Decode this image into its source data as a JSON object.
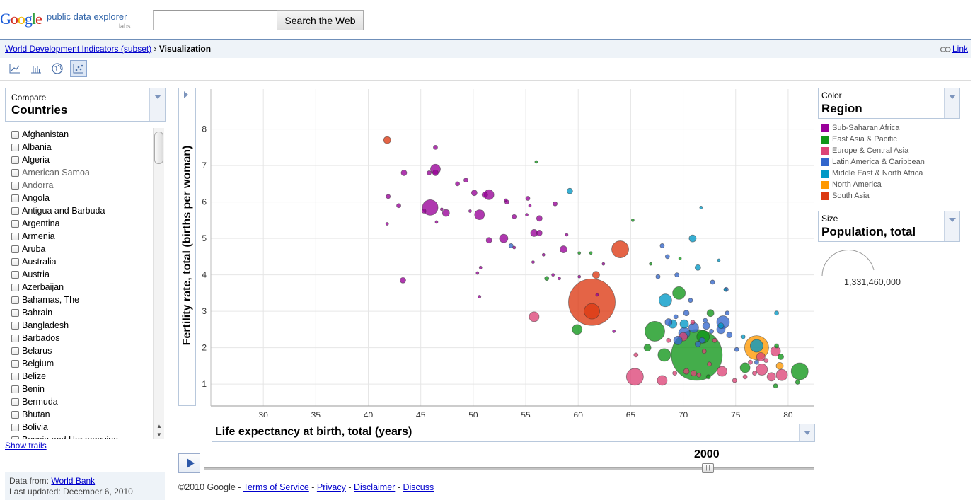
{
  "header": {
    "logo_google": "Google",
    "logo_product": "public data explorer",
    "logo_labs": "labs",
    "search_value": "",
    "search_button": "Search the Web"
  },
  "breadcrumb": {
    "dataset": "World Development Indicators (subset)",
    "separator": "›",
    "current": "Visualization"
  },
  "link_label": "Link",
  "view_icons": [
    "line-chart-icon",
    "bar-chart-icon",
    "map-icon",
    "bubble-chart-icon"
  ],
  "compare": {
    "small_label": "Compare",
    "big_label": "Countries"
  },
  "countries": [
    {
      "name": "Afghanistan"
    },
    {
      "name": "Albania"
    },
    {
      "name": "Algeria"
    },
    {
      "name": "American Samoa",
      "grey": true
    },
    {
      "name": "Andorra",
      "grey": true
    },
    {
      "name": "Angola"
    },
    {
      "name": "Antigua and Barbuda"
    },
    {
      "name": "Argentina"
    },
    {
      "name": "Armenia"
    },
    {
      "name": "Aruba"
    },
    {
      "name": "Australia"
    },
    {
      "name": "Austria"
    },
    {
      "name": "Azerbaijan"
    },
    {
      "name": "Bahamas, The"
    },
    {
      "name": "Bahrain"
    },
    {
      "name": "Bangladesh"
    },
    {
      "name": "Barbados"
    },
    {
      "name": "Belarus"
    },
    {
      "name": "Belgium"
    },
    {
      "name": "Belize"
    },
    {
      "name": "Benin"
    },
    {
      "name": "Bermuda"
    },
    {
      "name": "Bhutan"
    },
    {
      "name": "Bolivia"
    },
    {
      "name": "Bosnia and Herzegovina"
    }
  ],
  "show_trails": "Show trails",
  "data_source": {
    "prefix": "Data from:",
    "source": "World Bank",
    "updated": "Last updated: December 6, 2010"
  },
  "color_selector": {
    "small_label": "Color",
    "big_label": "Region"
  },
  "size_selector": {
    "small_label": "Size",
    "big_label": "Population, total",
    "sample_value": "1,331,460,000"
  },
  "legend": [
    {
      "name": "Sub-Saharan Africa",
      "color": "#990099"
    },
    {
      "name": "East Asia & Pacific",
      "color": "#109618"
    },
    {
      "name": "Europe & Central Asia",
      "color": "#dd4477"
    },
    {
      "name": "Latin America & Caribbean",
      "color": "#3366cc"
    },
    {
      "name": "Middle East & North Africa",
      "color": "#0099c6"
    },
    {
      "name": "North America",
      "color": "#ff9900"
    },
    {
      "name": "South Asia",
      "color": "#dc3912"
    }
  ],
  "timeline": {
    "year": "2000"
  },
  "footer": {
    "copyright": "©2010 Google -",
    "links": [
      "Terms of Service",
      "Privacy",
      "Disclaimer",
      "Discuss"
    ]
  },
  "chart_data": {
    "type": "scatter",
    "xlabel": "Life expectancy at birth, total (years)",
    "ylabel": "Fertility rate, total (births per woman)",
    "xlim": [
      25,
      82.5
    ],
    "ylim": [
      0.4,
      9.1
    ],
    "x_ticks": [
      30,
      35,
      40,
      45,
      50,
      55,
      60,
      65,
      70,
      75,
      80
    ],
    "y_ticks": [
      1,
      2,
      3,
      4,
      5,
      6,
      7,
      8
    ],
    "grid": true,
    "size_encoding": "Population, total",
    "color_encoding": "Region",
    "points": [
      {
        "x": 71.3,
        "y": 1.8,
        "r": 36,
        "region": "East Asia & Pacific"
      },
      {
        "x": 61.3,
        "y": 3.25,
        "r": 33,
        "region": "South Asia"
      },
      {
        "x": 61.3,
        "y": 3.0,
        "r": 11,
        "region": "South Asia"
      },
      {
        "x": 64.0,
        "y": 4.7,
        "r": 12,
        "region": "South Asia"
      },
      {
        "x": 41.8,
        "y": 7.7,
        "r": 5,
        "region": "South Asia"
      },
      {
        "x": 61.7,
        "y": 4.0,
        "r": 5,
        "region": "South Asia"
      },
      {
        "x": 77.0,
        "y": 2.0,
        "r": 17,
        "region": "North America"
      },
      {
        "x": 79.2,
        "y": 1.5,
        "r": 5,
        "region": "North America"
      },
      {
        "x": 67.3,
        "y": 2.45,
        "r": 14,
        "region": "East Asia & Pacific"
      },
      {
        "x": 81.1,
        "y": 1.35,
        "r": 12,
        "region": "East Asia & Pacific"
      },
      {
        "x": 69.6,
        "y": 3.5,
        "r": 9,
        "region": "East Asia & Pacific"
      },
      {
        "x": 59.9,
        "y": 2.5,
        "r": 7,
        "region": "East Asia & Pacific"
      },
      {
        "x": 68.2,
        "y": 1.8,
        "r": 9,
        "region": "East Asia & Pacific"
      },
      {
        "x": 71.9,
        "y": 2.3,
        "r": 9,
        "region": "East Asia & Pacific"
      },
      {
        "x": 75.9,
        "y": 1.45,
        "r": 7,
        "region": "East Asia & Pacific"
      },
      {
        "x": 66.6,
        "y": 2.0,
        "r": 5,
        "region": "East Asia & Pacific"
      },
      {
        "x": 72.6,
        "y": 2.95,
        "r": 5,
        "region": "East Asia & Pacific"
      },
      {
        "x": 56.0,
        "y": 7.1,
        "r": 2,
        "region": "East Asia & Pacific"
      },
      {
        "x": 65.2,
        "y": 5.5,
        "r": 2,
        "region": "East Asia & Pacific"
      },
      {
        "x": 60.1,
        "y": 4.6,
        "r": 2,
        "region": "East Asia & Pacific"
      },
      {
        "x": 80.9,
        "y": 1.05,
        "r": 3,
        "region": "East Asia & Pacific"
      },
      {
        "x": 69.7,
        "y": 4.45,
        "r": 2,
        "region": "East Asia & Pacific"
      },
      {
        "x": 57.0,
        "y": 3.9,
        "r": 3,
        "region": "East Asia & Pacific"
      },
      {
        "x": 78.8,
        "y": 0.95,
        "r": 3,
        "region": "East Asia & Pacific"
      },
      {
        "x": 72.4,
        "y": 1.2,
        "r": 3,
        "region": "East Asia & Pacific"
      },
      {
        "x": 78.9,
        "y": 2.05,
        "r": 3,
        "region": "East Asia & Pacific"
      },
      {
        "x": 79.3,
        "y": 1.75,
        "r": 4,
        "region": "East Asia & Pacific"
      },
      {
        "x": 66.9,
        "y": 4.3,
        "r": 2,
        "region": "East Asia & Pacific"
      },
      {
        "x": 61.2,
        "y": 4.6,
        "r": 2,
        "region": "East Asia & Pacific"
      },
      {
        "x": 65.4,
        "y": 1.2,
        "r": 12,
        "region": "Europe & Central Asia"
      },
      {
        "x": 68.0,
        "y": 1.1,
        "r": 7,
        "region": "Europe & Central Asia"
      },
      {
        "x": 77.5,
        "y": 1.4,
        "r": 8,
        "region": "Europe & Central Asia"
      },
      {
        "x": 78.8,
        "y": 1.9,
        "r": 7,
        "region": "Europe & Central Asia"
      },
      {
        "x": 79.4,
        "y": 1.25,
        "r": 8,
        "region": "Europe & Central Asia"
      },
      {
        "x": 73.7,
        "y": 1.35,
        "r": 7,
        "region": "Europe & Central Asia"
      },
      {
        "x": 78.4,
        "y": 1.2,
        "r": 6,
        "region": "Europe & Central Asia"
      },
      {
        "x": 77.4,
        "y": 1.75,
        "r": 6,
        "region": "Europe & Central Asia"
      },
      {
        "x": 55.8,
        "y": 2.85,
        "r": 7,
        "region": "Europe & Central Asia"
      },
      {
        "x": 70.0,
        "y": 2.3,
        "r": 6,
        "region": "Europe & Central Asia"
      },
      {
        "x": 70.3,
        "y": 1.35,
        "r": 4,
        "region": "Europe & Central Asia"
      },
      {
        "x": 71.0,
        "y": 1.3,
        "r": 4,
        "region": "Europe & Central Asia"
      },
      {
        "x": 72.5,
        "y": 1.55,
        "r": 3,
        "region": "Europe & Central Asia"
      },
      {
        "x": 74.9,
        "y": 1.1,
        "r": 3,
        "region": "Europe & Central Asia"
      },
      {
        "x": 75.9,
        "y": 1.2,
        "r": 3,
        "region": "Europe & Central Asia"
      },
      {
        "x": 76.8,
        "y": 1.3,
        "r": 3,
        "region": "Europe & Central Asia"
      },
      {
        "x": 70.9,
        "y": 2.7,
        "r": 3,
        "region": "Europe & Central Asia"
      },
      {
        "x": 73.0,
        "y": 2.2,
        "r": 3,
        "region": "Europe & Central Asia"
      },
      {
        "x": 65.5,
        "y": 1.8,
        "r": 3,
        "region": "Europe & Central Asia"
      },
      {
        "x": 69.2,
        "y": 1.3,
        "r": 3,
        "region": "Europe & Central Asia"
      },
      {
        "x": 72.0,
        "y": 1.9,
        "r": 3,
        "region": "Europe & Central Asia"
      },
      {
        "x": 77.9,
        "y": 1.65,
        "r": 3,
        "region": "Europe & Central Asia"
      },
      {
        "x": 71.5,
        "y": 1.25,
        "r": 3,
        "region": "Europe & Central Asia"
      },
      {
        "x": 76.4,
        "y": 1.6,
        "r": 3,
        "region": "Europe & Central Asia"
      },
      {
        "x": 68.6,
        "y": 2.2,
        "r": 3,
        "region": "Europe & Central Asia"
      },
      {
        "x": 73.8,
        "y": 2.7,
        "r": 9,
        "region": "Latin America & Caribbean"
      },
      {
        "x": 70.1,
        "y": 2.4,
        "r": 8,
        "region": "Latin America & Caribbean"
      },
      {
        "x": 71.0,
        "y": 2.55,
        "r": 7,
        "region": "Latin America & Caribbean"
      },
      {
        "x": 73.6,
        "y": 2.5,
        "r": 6,
        "region": "Latin America & Caribbean"
      },
      {
        "x": 69.5,
        "y": 2.2,
        "r": 6,
        "region": "Latin America & Caribbean"
      },
      {
        "x": 68.6,
        "y": 2.7,
        "r": 5,
        "region": "Latin America & Caribbean"
      },
      {
        "x": 72.2,
        "y": 2.6,
        "r": 5,
        "region": "Latin America & Caribbean"
      },
      {
        "x": 67.6,
        "y": 3.95,
        "r": 3,
        "region": "Latin America & Caribbean"
      },
      {
        "x": 68.5,
        "y": 4.5,
        "r": 3,
        "region": "Latin America & Caribbean"
      },
      {
        "x": 71.8,
        "y": 2.2,
        "r": 4,
        "region": "Latin America & Caribbean"
      },
      {
        "x": 74.4,
        "y": 2.35,
        "r": 4,
        "region": "Latin America & Caribbean"
      },
      {
        "x": 70.3,
        "y": 2.95,
        "r": 4,
        "region": "Latin America & Caribbean"
      },
      {
        "x": 71.4,
        "y": 2.1,
        "r": 4,
        "region": "Latin America & Caribbean"
      },
      {
        "x": 68.0,
        "y": 4.8,
        "r": 3,
        "region": "Latin America & Caribbean"
      },
      {
        "x": 53.6,
        "y": 4.8,
        "r": 3,
        "region": "Latin America & Caribbean"
      },
      {
        "x": 74.1,
        "y": 3.6,
        "r": 3,
        "region": "Latin America & Caribbean"
      },
      {
        "x": 72.8,
        "y": 3.8,
        "r": 3,
        "region": "Latin America & Caribbean"
      },
      {
        "x": 77.0,
        "y": 1.6,
        "r": 3,
        "region": "Latin America & Caribbean"
      },
      {
        "x": 74.2,
        "y": 2.95,
        "r": 3,
        "region": "Latin America & Caribbean"
      },
      {
        "x": 72.1,
        "y": 2.75,
        "r": 3,
        "region": "Latin America & Caribbean"
      },
      {
        "x": 69.3,
        "y": 2.85,
        "r": 3,
        "region": "Latin America & Caribbean"
      },
      {
        "x": 75.1,
        "y": 1.95,
        "r": 3,
        "region": "Latin America & Caribbean"
      },
      {
        "x": 72.7,
        "y": 2.45,
        "r": 3,
        "region": "Latin America & Caribbean"
      },
      {
        "x": 70.7,
        "y": 3.3,
        "r": 3,
        "region": "Latin America & Caribbean"
      },
      {
        "x": 69.4,
        "y": 4.0,
        "r": 3,
        "region": "Latin America & Caribbean"
      },
      {
        "x": 68.3,
        "y": 3.3,
        "r": 9,
        "region": "Middle East & North Africa"
      },
      {
        "x": 77.0,
        "y": 2.05,
        "r": 9,
        "region": "Middle East & North Africa"
      },
      {
        "x": 69.0,
        "y": 2.65,
        "r": 6,
        "region": "Middle East & North Africa"
      },
      {
        "x": 70.1,
        "y": 2.65,
        "r": 6,
        "region": "Middle East & North Africa"
      },
      {
        "x": 59.2,
        "y": 6.3,
        "r": 4,
        "region": "Middle East & North Africa"
      },
      {
        "x": 70.9,
        "y": 5.0,
        "r": 5,
        "region": "Middle East & North Africa"
      },
      {
        "x": 71.4,
        "y": 4.2,
        "r": 4,
        "region": "Middle East & North Africa"
      },
      {
        "x": 73.6,
        "y": 2.6,
        "r": 4,
        "region": "Middle East & North Africa"
      },
      {
        "x": 71.7,
        "y": 5.85,
        "r": 2,
        "region": "Middle East & North Africa"
      },
      {
        "x": 73.4,
        "y": 4.4,
        "r": 2,
        "region": "Middle East & North Africa"
      },
      {
        "x": 78.9,
        "y": 2.95,
        "r": 3,
        "region": "Middle East & North Africa"
      },
      {
        "x": 74.0,
        "y": 3.6,
        "r": 2,
        "region": "Middle East & North Africa"
      },
      {
        "x": 75.7,
        "y": 2.3,
        "r": 3,
        "region": "Middle East & North Africa"
      },
      {
        "x": 45.9,
        "y": 5.85,
        "r": 11,
        "region": "Sub-Saharan Africa"
      },
      {
        "x": 46.4,
        "y": 6.9,
        "r": 7,
        "region": "Sub-Saharan Africa"
      },
      {
        "x": 51.5,
        "y": 6.2,
        "r": 7,
        "region": "Sub-Saharan Africa"
      },
      {
        "x": 50.6,
        "y": 5.65,
        "r": 7,
        "region": "Sub-Saharan Africa"
      },
      {
        "x": 52.9,
        "y": 5.0,
        "r": 6,
        "region": "Sub-Saharan Africa"
      },
      {
        "x": 58.6,
        "y": 4.7,
        "r": 5,
        "region": "Sub-Saharan Africa"
      },
      {
        "x": 55.8,
        "y": 5.15,
        "r": 5,
        "region": "Sub-Saharan Africa"
      },
      {
        "x": 56.3,
        "y": 5.15,
        "r": 4,
        "region": "Sub-Saharan Africa"
      },
      {
        "x": 47.4,
        "y": 5.7,
        "r": 5,
        "region": "Sub-Saharan Africa"
      },
      {
        "x": 43.4,
        "y": 6.8,
        "r": 4,
        "region": "Sub-Saharan Africa"
      },
      {
        "x": 46.4,
        "y": 6.8,
        "r": 4,
        "region": "Sub-Saharan Africa"
      },
      {
        "x": 49.3,
        "y": 6.6,
        "r": 3,
        "region": "Sub-Saharan Africa"
      },
      {
        "x": 48.5,
        "y": 6.5,
        "r": 3,
        "region": "Sub-Saharan Africa"
      },
      {
        "x": 50.1,
        "y": 6.25,
        "r": 4,
        "region": "Sub-Saharan Africa"
      },
      {
        "x": 51.1,
        "y": 6.2,
        "r": 4,
        "region": "Sub-Saharan Africa"
      },
      {
        "x": 53.2,
        "y": 6.0,
        "r": 3,
        "region": "Sub-Saharan Africa"
      },
      {
        "x": 55.2,
        "y": 6.1,
        "r": 3,
        "region": "Sub-Saharan Africa"
      },
      {
        "x": 56.3,
        "y": 5.55,
        "r": 4,
        "region": "Sub-Saharan Africa"
      },
      {
        "x": 53.9,
        "y": 5.6,
        "r": 3,
        "region": "Sub-Saharan Africa"
      },
      {
        "x": 51.5,
        "y": 4.95,
        "r": 4,
        "region": "Sub-Saharan Africa"
      },
      {
        "x": 41.9,
        "y": 6.15,
        "r": 3,
        "region": "Sub-Saharan Africa"
      },
      {
        "x": 43.3,
        "y": 3.85,
        "r": 4,
        "region": "Sub-Saharan Africa"
      },
      {
        "x": 46.4,
        "y": 7.5,
        "r": 3,
        "region": "Sub-Saharan Africa"
      },
      {
        "x": 45.8,
        "y": 6.8,
        "r": 3,
        "region": "Sub-Saharan Africa"
      },
      {
        "x": 42.9,
        "y": 5.9,
        "r": 3,
        "region": "Sub-Saharan Africa"
      },
      {
        "x": 45.3,
        "y": 5.75,
        "r": 3,
        "region": "Sub-Saharan Africa"
      },
      {
        "x": 41.8,
        "y": 5.4,
        "r": 2,
        "region": "Sub-Saharan Africa"
      },
      {
        "x": 46.5,
        "y": 5.45,
        "r": 2,
        "region": "Sub-Saharan Africa"
      },
      {
        "x": 49.7,
        "y": 5.75,
        "r": 2,
        "region": "Sub-Saharan Africa"
      },
      {
        "x": 50.4,
        "y": 4.05,
        "r": 2,
        "region": "Sub-Saharan Africa"
      },
      {
        "x": 50.7,
        "y": 4.2,
        "r": 2,
        "region": "Sub-Saharan Africa"
      },
      {
        "x": 50.6,
        "y": 3.4,
        "r": 2,
        "region": "Sub-Saharan Africa"
      },
      {
        "x": 57.8,
        "y": 5.95,
        "r": 3,
        "region": "Sub-Saharan Africa"
      },
      {
        "x": 58.9,
        "y": 5.1,
        "r": 2,
        "region": "Sub-Saharan Africa"
      },
      {
        "x": 57.6,
        "y": 4.0,
        "r": 2,
        "region": "Sub-Saharan Africa"
      },
      {
        "x": 62.4,
        "y": 4.3,
        "r": 2,
        "region": "Sub-Saharan Africa"
      },
      {
        "x": 56.7,
        "y": 4.55,
        "r": 2,
        "region": "Sub-Saharan Africa"
      },
      {
        "x": 55.1,
        "y": 5.65,
        "r": 2,
        "region": "Sub-Saharan Africa"
      },
      {
        "x": 58.2,
        "y": 3.9,
        "r": 2,
        "region": "Sub-Saharan Africa"
      },
      {
        "x": 55.7,
        "y": 4.35,
        "r": 2,
        "region": "Sub-Saharan Africa"
      },
      {
        "x": 53.9,
        "y": 4.75,
        "r": 2,
        "region": "Sub-Saharan Africa"
      },
      {
        "x": 53.1,
        "y": 6.05,
        "r": 2,
        "region": "Sub-Saharan Africa"
      },
      {
        "x": 61.8,
        "y": 3.45,
        "r": 2,
        "region": "Sub-Saharan Africa"
      },
      {
        "x": 60.1,
        "y": 3.95,
        "r": 2,
        "region": "Sub-Saharan Africa"
      },
      {
        "x": 63.4,
        "y": 2.45,
        "r": 2,
        "region": "Sub-Saharan Africa"
      },
      {
        "x": 55.4,
        "y": 5.9,
        "r": 2,
        "region": "Sub-Saharan Africa"
      },
      {
        "x": 47.0,
        "y": 5.8,
        "r": 2,
        "region": "Sub-Saharan Africa"
      }
    ]
  }
}
